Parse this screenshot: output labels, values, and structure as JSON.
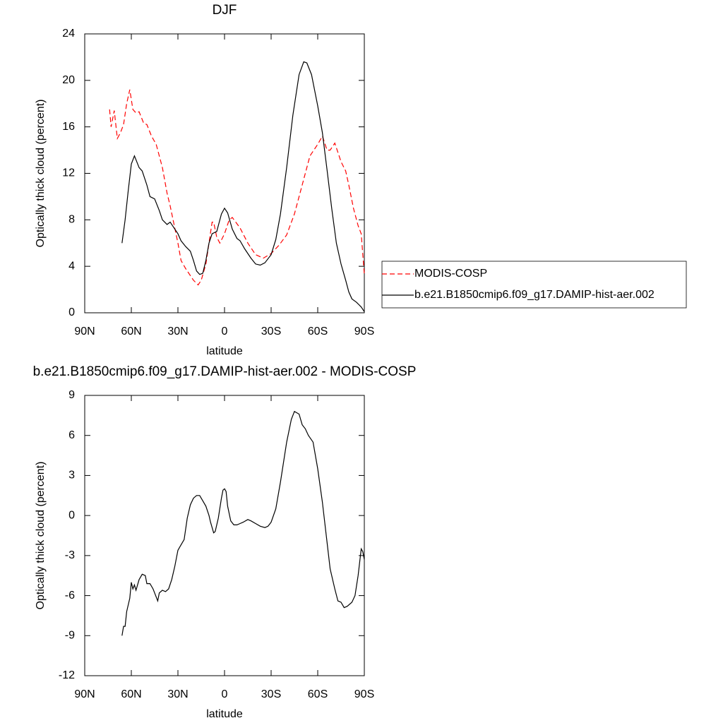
{
  "chart_data": [
    {
      "type": "line",
      "title": "DJF",
      "xlabel": "latitude",
      "ylabel": "Optically thick cloud (percent)",
      "xlim": [
        90,
        -90
      ],
      "ylim": [
        0,
        24
      ],
      "xticks": [
        {
          "value": 90,
          "label": "90N"
        },
        {
          "value": 60,
          "label": "60N"
        },
        {
          "value": 30,
          "label": "30N"
        },
        0,
        {
          "value": -30,
          "label": "30S"
        },
        {
          "value": -60,
          "label": "60S"
        },
        {
          "value": -90,
          "label": "90S"
        }
      ],
      "yticks": [
        0,
        4,
        8,
        12,
        16,
        20,
        24
      ],
      "legend": "right",
      "series": [
        {
          "name": "MODIS-COSP",
          "color": "#ff0000",
          "dashed": true,
          "x": [
            74,
            73,
            71,
            69,
            67,
            65,
            63,
            61,
            59,
            57,
            55,
            52,
            50,
            47,
            44,
            40,
            37,
            35,
            30,
            28,
            25,
            20,
            17,
            15,
            12,
            8,
            7,
            5,
            3,
            0,
            -3,
            -5,
            -10,
            -15,
            -20,
            -25,
            -30,
            -35,
            -40,
            -45,
            -50,
            -55,
            -60,
            -63,
            -66,
            -68,
            -71,
            -75,
            -78,
            -80,
            -83,
            -86,
            -88,
            -90
          ],
          "values": [
            17.5,
            16,
            17.4,
            15,
            15.5,
            16.2,
            18,
            19.2,
            17.5,
            17.2,
            17.3,
            16.3,
            16.2,
            15.2,
            14.5,
            12.5,
            10.3,
            9.2,
            6,
            4.5,
            3.8,
            2.8,
            2.4,
            2.8,
            4.2,
            7.8,
            7.8,
            6.5,
            6,
            6.8,
            8,
            8.2,
            7.3,
            6,
            5,
            4.7,
            5.1,
            5.8,
            6.7,
            8.5,
            11,
            13.5,
            14.5,
            15.2,
            14,
            14,
            14.6,
            13,
            12.2,
            11,
            9,
            7.5,
            6.8,
            3.3
          ]
        },
        {
          "name": "b.e21.B1850cmip6.f09_g17.DAMIP-hist-aer.002",
          "color": "#000000",
          "dashed": false,
          "x": [
            66,
            64,
            62,
            60,
            58,
            55,
            53,
            50,
            48,
            45,
            42,
            40,
            37,
            35,
            33,
            30,
            28,
            25,
            22,
            20,
            18,
            16,
            14,
            12,
            10,
            8,
            5,
            2,
            0,
            -2,
            -5,
            -8,
            -10,
            -13,
            -17,
            -20,
            -23,
            -26,
            -30,
            -33,
            -36,
            -40,
            -44,
            -48,
            -51,
            -53,
            -56,
            -60,
            -63,
            -66,
            -69,
            -72,
            -75,
            -78,
            -80,
            -82,
            -85,
            -88,
            -90
          ],
          "values": [
            6,
            8,
            10.5,
            12.8,
            13.5,
            12.5,
            12.2,
            11,
            10,
            9.8,
            8.8,
            8,
            7.6,
            7.8,
            7.4,
            6.8,
            6.2,
            5.7,
            5.3,
            4.5,
            3.6,
            3.3,
            3.4,
            4.5,
            6,
            6.8,
            7,
            8.5,
            9,
            8.6,
            7.2,
            6.4,
            6.2,
            5.5,
            4.7,
            4.2,
            4.1,
            4.3,
            5,
            6.3,
            8.5,
            12.5,
            17,
            20.5,
            21.6,
            21.5,
            20.5,
            17.8,
            15.5,
            12.3,
            9,
            6,
            4.2,
            2.8,
            1.8,
            1.2,
            0.9,
            0.5,
            0.1
          ]
        }
      ]
    },
    {
      "type": "line",
      "title": "b.e21.B1850cmip6.f09_g17.DAMIP-hist-aer.002 - MODIS-COSP",
      "xlabel": "latitude",
      "ylabel": "Optically thick cloud (percent)",
      "xlim": [
        90,
        -90
      ],
      "ylim": [
        -12,
        9
      ],
      "xticks": [
        {
          "value": 90,
          "label": "90N"
        },
        {
          "value": 60,
          "label": "60N"
        },
        {
          "value": 30,
          "label": "30N"
        },
        0,
        {
          "value": -30,
          "label": "30S"
        },
        {
          "value": -60,
          "label": "60S"
        },
        {
          "value": -90,
          "label": "90S"
        }
      ],
      "yticks": [
        -12,
        -9,
        -6,
        -3,
        0,
        3,
        6,
        9
      ],
      "series": [
        {
          "color": "#000000",
          "dashed": false,
          "x": [
            66,
            65,
            64,
            63,
            61,
            60,
            59,
            58,
            57,
            55,
            53,
            51,
            50,
            48,
            46,
            45,
            43,
            42,
            40,
            38,
            36,
            34,
            32,
            30,
            28,
            26,
            24,
            22,
            20,
            18,
            16,
            14,
            12,
            10,
            9,
            7,
            6,
            4,
            2,
            1,
            0,
            -1,
            -2,
            -4,
            -6,
            -8,
            -10,
            -12,
            -15,
            -17,
            -20,
            -23,
            -26,
            -28,
            -30,
            -33,
            -36,
            -40,
            -43,
            -45,
            -48,
            -50,
            -52,
            -54,
            -57,
            -60,
            -63,
            -66,
            -68,
            -71,
            -73,
            -75,
            -77,
            -79,
            -82,
            -84,
            -86,
            -88,
            -89,
            -90
          ],
          "values": [
            -9,
            -8.3,
            -8.3,
            -7.2,
            -6.2,
            -5,
            -5.5,
            -5.2,
            -5.6,
            -4.8,
            -4.4,
            -4.5,
            -5.1,
            -5.1,
            -5.5,
            -5.8,
            -6.4,
            -5.8,
            -5.6,
            -5.7,
            -5.5,
            -4.8,
            -3.8,
            -2.6,
            -2.2,
            -1.8,
            -0.2,
            0.8,
            1.3,
            1.5,
            1.5,
            1.1,
            0.7,
            0,
            -0.5,
            -1.3,
            -1.2,
            -0.2,
            1.3,
            1.9,
            2,
            1.8,
            0.7,
            -0.4,
            -0.7,
            -0.7,
            -0.6,
            -0.5,
            -0.3,
            -0.4,
            -0.6,
            -0.8,
            -0.9,
            -0.8,
            -0.5,
            0.5,
            2.5,
            5.5,
            7.2,
            7.8,
            7.6,
            6.8,
            6.5,
            6,
            5.5,
            3.5,
            1,
            -2,
            -4,
            -5.5,
            -6.4,
            -6.5,
            -6.9,
            -6.8,
            -6.5,
            -6,
            -4.5,
            -2.5,
            -2.7,
            -3.3
          ]
        }
      ]
    }
  ]
}
